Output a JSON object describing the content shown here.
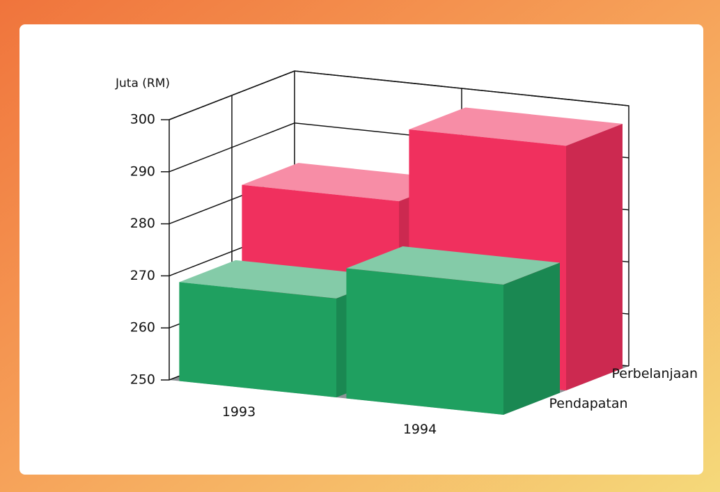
{
  "chart_data": {
    "type": "bar3d",
    "y_label": "Juta (RM)",
    "categories": [
      "1993",
      "1994"
    ],
    "series": [
      {
        "name": "Pendapatan",
        "color": "#1fa060",
        "values": [
          269,
          275
        ]
      },
      {
        "name": "Perbelanjaan",
        "color": "#f0305e",
        "values": [
          283,
          297
        ]
      }
    ],
    "ylim": [
      250,
      300
    ],
    "yticks": [
      250,
      260,
      270,
      280,
      290,
      300
    ],
    "grid": true
  }
}
